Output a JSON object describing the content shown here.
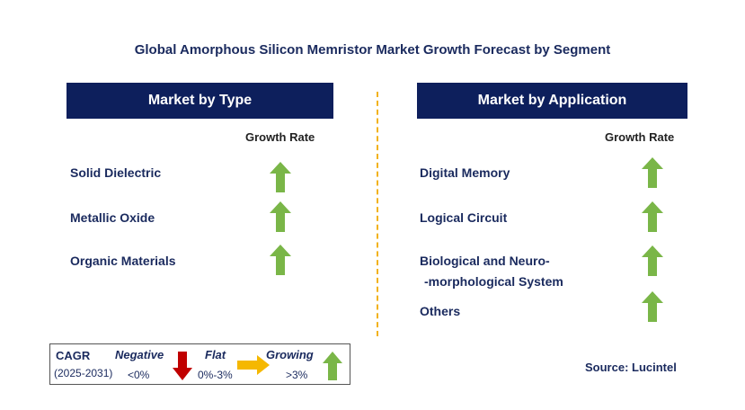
{
  "title": "Global Amorphous Silicon Memristor Market Growth Forecast by Segment",
  "left_panel": {
    "header": "Market by Type",
    "growth_rate_label": "Growth Rate",
    "items": [
      {
        "label": "Solid Dielectric",
        "trend": "growing"
      },
      {
        "label": "Metallic Oxide",
        "trend": "growing"
      },
      {
        "label": "Organic Materials",
        "trend": "growing"
      }
    ]
  },
  "right_panel": {
    "header": "Market by Application",
    "growth_rate_label": "Growth Rate",
    "items": [
      {
        "label": "Digital Memory",
        "trend": "growing"
      },
      {
        "label": "Logical Circuit",
        "trend": "growing"
      },
      {
        "label_line1": "Biological and Neuro-",
        "label_line2": "-morphological System",
        "trend": "growing"
      },
      {
        "label": "Others",
        "trend": "growing"
      }
    ]
  },
  "legend": {
    "cagr": "CAGR",
    "period": "(2025-2031)",
    "negative": "Negative",
    "negative_range": "<0%",
    "flat": "Flat",
    "flat_range": "0%-3%",
    "growing": "Growing",
    "growing_range": ">3%"
  },
  "source": "Source: Lucintel",
  "colors": {
    "header_bg": "#0d1f5c",
    "text": "#1a2a5e",
    "growing": "#7ab648",
    "negative": "#c00000",
    "flat": "#f5b800",
    "divider": "#f2b21b"
  }
}
